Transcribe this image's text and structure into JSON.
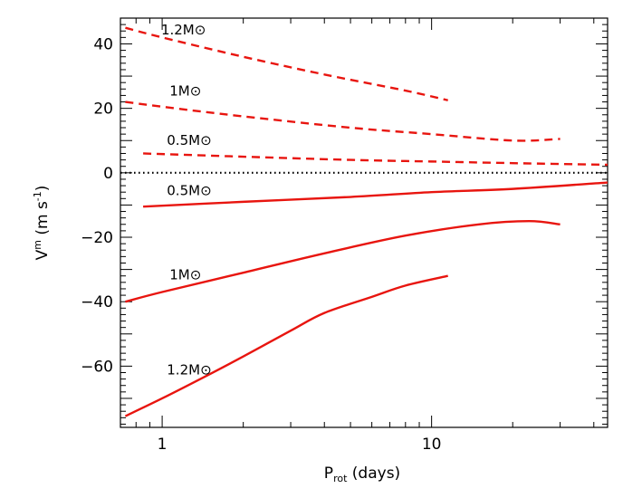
{
  "chart_data": {
    "type": "line",
    "xlabel": {
      "main": "P",
      "sub": "rot",
      "rest": " (days)"
    },
    "ylabel": {
      "main": "V",
      "sup": "m",
      "rest": " (m s",
      "sup2": "-1",
      "end": ")"
    },
    "xscale": "log",
    "xlim": [
      0.7,
      45
    ],
    "ylim": [
      -79,
      48
    ],
    "x_ticks": [
      {
        "value": 1,
        "label": "1"
      },
      {
        "value": 10,
        "label": "10"
      }
    ],
    "y_ticks": [
      {
        "value": 40,
        "label": "40"
      },
      {
        "value": 20,
        "label": "20"
      },
      {
        "value": 0,
        "label": "0"
      },
      {
        "value": -20,
        "label": "−20"
      },
      {
        "value": -40,
        "label": "−40"
      },
      {
        "value": -60,
        "label": "−60"
      }
    ],
    "zero_line": {
      "y": 0,
      "style": "dotted"
    },
    "grid": false,
    "series": [
      {
        "name": "1.2M⊙",
        "style": "dashed",
        "color": "#e8150f",
        "x": [
          0.73,
          1.0,
          2.0,
          4.0,
          8.0,
          11.5
        ],
        "y": [
          45,
          42,
          36,
          30.5,
          25.5,
          22.5
        ]
      },
      {
        "name": "1M⊙",
        "style": "dashed",
        "color": "#e8150f",
        "x": [
          0.73,
          1.0,
          2.0,
          5.0,
          10.0,
          20.0,
          30.0
        ],
        "y": [
          22,
          20.5,
          17.5,
          14,
          12,
          10,
          10.5
        ]
      },
      {
        "name": "0.5M⊙",
        "style": "dashed",
        "color": "#e8150f",
        "x": [
          0.85,
          2.0,
          5.0,
          10.0,
          20.0,
          45.0
        ],
        "y": [
          6,
          5,
          4,
          3.5,
          3,
          2.5
        ]
      },
      {
        "name": "0.5M⊙",
        "style": "solid",
        "color": "#e8150f",
        "x": [
          0.85,
          2.0,
          5.0,
          10.0,
          20.0,
          45.0
        ],
        "y": [
          -10.5,
          -9,
          -7.5,
          -6,
          -5,
          -3
        ]
      },
      {
        "name": "1M⊙",
        "style": "solid",
        "color": "#e8150f",
        "x": [
          0.73,
          1.0,
          2.0,
          4.0,
          8.0,
          15.0,
          23.0,
          30.0
        ],
        "y": [
          -40,
          -37,
          -31,
          -25,
          -19.5,
          -16,
          -15,
          -16
        ]
      },
      {
        "name": "1.2M⊙",
        "style": "solid",
        "color": "#e8150f",
        "x": [
          0.73,
          1.0,
          1.5,
          2.0,
          3.0,
          4.0,
          6.0,
          8.0,
          11.5
        ],
        "y": [
          -75.5,
          -70,
          -62.5,
          -57,
          -49,
          -43.5,
          -38.5,
          -35,
          -32
        ]
      }
    ],
    "annotations": [
      {
        "text": "1.2M⊙",
        "x": 1.2,
        "y": 43
      },
      {
        "text": "1M⊙",
        "x": 1.22,
        "y": 24
      },
      {
        "text": "0.5M⊙",
        "x": 1.26,
        "y": 8.7
      },
      {
        "text": "0.5M⊙",
        "x": 1.26,
        "y": -7
      },
      {
        "text": "1M⊙",
        "x": 1.22,
        "y": -33
      },
      {
        "text": "1.2M⊙",
        "x": 1.26,
        "y": -62.5
      }
    ]
  }
}
